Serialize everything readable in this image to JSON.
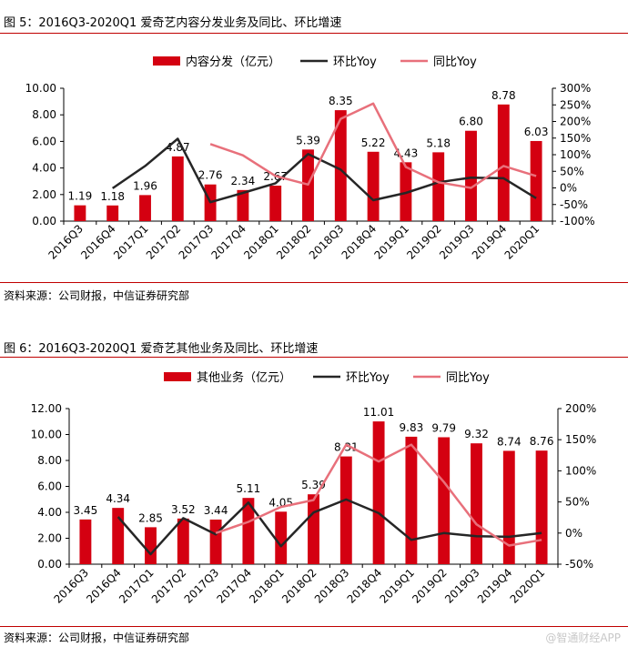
{
  "figures": [
    {
      "title": "图 5：2016Q3-2020Q1 爱奇艺内容分发业务及同比、环比增速",
      "source": "资料来源：公司财报，中信证券研究部"
    },
    {
      "title": "图 6：2016Q3-2020Q1 爱奇艺其他业务及同比、环比增速",
      "source": "资料来源：公司财报，中信证券研究部"
    }
  ],
  "watermark": "@智通财经APP",
  "colors": {
    "bar": "#d40011",
    "qoq": "#262626",
    "yoy": "#e8707b",
    "rule": "#c00000"
  },
  "chart_data": [
    {
      "type": "bar",
      "categories": [
        "2016Q3",
        "2016Q4",
        "2017Q1",
        "2017Q2",
        "2017Q3",
        "2017Q4",
        "2018Q1",
        "2018Q2",
        "2018Q3",
        "2018Q4",
        "2019Q1",
        "2019Q2",
        "2019Q3",
        "2019Q4",
        "2020Q1"
      ],
      "series": [
        {
          "name": "内容分发（亿元）",
          "kind": "bar",
          "axis": "left",
          "values": [
            1.19,
            1.18,
            1.96,
            4.87,
            2.76,
            2.34,
            2.67,
            5.39,
            8.35,
            5.22,
            4.43,
            5.18,
            6.8,
            8.78,
            6.03
          ],
          "labels": [
            "1.19",
            "1.18",
            "1.96",
            "4.87",
            "2.76",
            "2.34",
            "2.67",
            "5.39",
            "8.35",
            "5.22",
            "4.43",
            "5.18",
            "6.80",
            "8.78",
            "6.03"
          ]
        },
        {
          "name": "环比Yoy",
          "kind": "line",
          "axis": "right",
          "values": [
            null,
            -1,
            66,
            148,
            -43,
            -15,
            14,
            102,
            55,
            -37,
            -15,
            17,
            31,
            29,
            -31
          ]
        },
        {
          "name": "同比Yoy",
          "kind": "line",
          "axis": "right",
          "values": [
            null,
            null,
            null,
            null,
            132,
            98,
            36,
            10,
            208,
            254,
            63,
            17,
            0,
            66,
            36
          ]
        }
      ],
      "ylim_left": [
        0,
        10
      ],
      "yticks_left": [
        "0.00",
        "2.00",
        "4.00",
        "6.00",
        "8.00",
        "10.00"
      ],
      "ylim_right": [
        -100,
        300
      ],
      "yticks_right": [
        "-100%",
        "-50%",
        "0%",
        "50%",
        "100%",
        "150%",
        "200%",
        "250%",
        "300%"
      ],
      "legend": "top"
    },
    {
      "type": "bar",
      "categories": [
        "2016Q3",
        "2016Q4",
        "2017Q1",
        "2017Q2",
        "2017Q3",
        "2017Q4",
        "2018Q1",
        "2018Q2",
        "2018Q3",
        "2018Q4",
        "2019Q1",
        "2019Q2",
        "2019Q3",
        "2019Q4",
        "2020Q1"
      ],
      "series": [
        {
          "name": "其他业务（亿元）",
          "kind": "bar",
          "axis": "left",
          "values": [
            3.45,
            4.34,
            2.85,
            3.52,
            3.44,
            5.11,
            4.05,
            5.39,
            8.31,
            11.01,
            9.83,
            9.79,
            9.32,
            8.74,
            8.76
          ],
          "labels": [
            "3.45",
            "4.34",
            "2.85",
            "3.52",
            "3.44",
            "5.11",
            "4.05",
            "5.39",
            "8.31",
            "11.01",
            "9.83",
            "9.79",
            "9.32",
            "8.74",
            "8.76"
          ]
        },
        {
          "name": "环比Yoy",
          "kind": "line",
          "axis": "right",
          "values": [
            null,
            26,
            -34,
            24,
            -2,
            49,
            -21,
            33,
            54,
            32,
            -11,
            0,
            -5,
            -6,
            0
          ]
        },
        {
          "name": "同比Yoy",
          "kind": "line",
          "axis": "right",
          "values": [
            null,
            null,
            null,
            null,
            0,
            18,
            42,
            53,
            142,
            115,
            142,
            82,
            14,
            -20,
            -11
          ]
        }
      ],
      "ylim_left": [
        0,
        12
      ],
      "yticks_left": [
        "0.00",
        "2.00",
        "4.00",
        "6.00",
        "8.00",
        "10.00",
        "12.00"
      ],
      "ylim_right": [
        -50,
        200
      ],
      "yticks_right": [
        "-50%",
        "0%",
        "50%",
        "100%",
        "150%",
        "200%"
      ],
      "legend": "top"
    }
  ]
}
